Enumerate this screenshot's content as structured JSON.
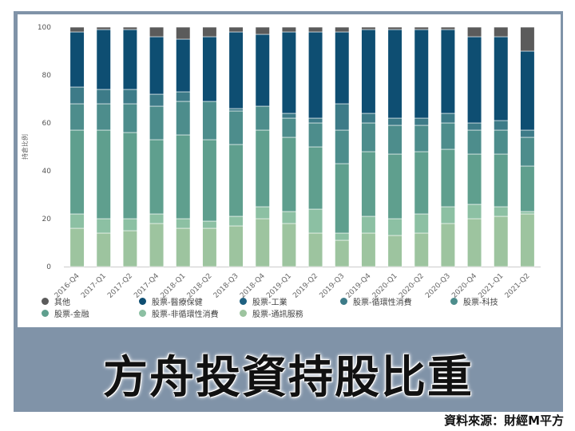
{
  "banner": {
    "title": "方舟投資持股比重"
  },
  "source": {
    "text": "資料來源：財經M平方"
  },
  "chart_data": {
    "type": "bar",
    "stacked": true,
    "ylabel": "持倉比例",
    "ylim": [
      0,
      100
    ],
    "yticks": [
      0,
      20,
      40,
      60,
      80,
      100
    ],
    "grid": false,
    "legend_position": "bottom",
    "categories": [
      "2016-Q4",
      "2017-Q1",
      "2017-Q2",
      "2017-Q4",
      "2018-Q1",
      "2018-Q2",
      "2018-Q3",
      "2018-Q4",
      "2019-Q1",
      "2019-Q2",
      "2019-Q3",
      "2019-Q4",
      "2020-Q1",
      "2020-Q2",
      "2020-Q3",
      "2020-Q4",
      "2021-Q1",
      "2021-Q2"
    ],
    "series": [
      {
        "name": "股票-通訊服務",
        "color": "#9dc49f",
        "values": [
          16,
          14,
          15,
          18,
          16,
          16,
          17,
          20,
          18,
          14,
          11,
          14,
          13,
          14,
          18,
          20,
          21,
          22
        ]
      },
      {
        "name": "股票-非循環性消費",
        "color": "#8cc0a3",
        "values": [
          6,
          6,
          5,
          4,
          4,
          3,
          4,
          5,
          5,
          10,
          3,
          7,
          7,
          8,
          7,
          6,
          4,
          1
        ]
      },
      {
        "name": "股票-金融",
        "color": "#5f9f8e",
        "values": [
          35,
          37,
          36,
          31,
          35,
          34,
          30,
          32,
          31,
          26,
          29,
          27,
          27,
          26,
          24,
          21,
          22,
          19
        ]
      },
      {
        "name": "股票-科技",
        "color": "#4d8d8c",
        "values": [
          11,
          11,
          12,
          14,
          14,
          16,
          14,
          10,
          8,
          10,
          14,
          12,
          12,
          11,
          11,
          10,
          10,
          12
        ]
      },
      {
        "name": "股票-循環性消費",
        "color": "#3d7b88",
        "values": [
          7,
          6,
          6,
          5,
          4,
          0,
          1,
          0,
          2,
          2,
          11,
          4,
          3,
          3,
          4,
          3,
          4,
          3
        ]
      },
      {
        "name": "股票-工業",
        "color": "#1f6181",
        "values": [
          0,
          0,
          0,
          0,
          0,
          0,
          0,
          0,
          0,
          0,
          0,
          0,
          0,
          0,
          0,
          0,
          0,
          0
        ]
      },
      {
        "name": "股票-醫療保健",
        "color": "#0e4e72",
        "values": [
          23,
          25,
          25,
          24,
          22,
          27,
          32,
          30,
          34,
          36,
          30,
          35,
          37,
          37,
          35,
          36,
          35,
          33
        ]
      },
      {
        "name": "其他",
        "color": "#5b5b5b",
        "values": [
          2,
          1,
          1,
          4,
          5,
          4,
          2,
          3,
          2,
          2,
          2,
          1,
          1,
          1,
          1,
          4,
          4,
          10
        ]
      }
    ],
    "legend": [
      {
        "name": "其他",
        "color": "#5b5b5b"
      },
      {
        "name": "股票-醫療保健",
        "color": "#0e4e72"
      },
      {
        "name": "股票-工業",
        "color": "#1f6181"
      },
      {
        "name": "股票-循環性消費",
        "color": "#3d7b88"
      },
      {
        "name": "股票-科技",
        "color": "#4d8d8c"
      },
      {
        "name": "股票-金融",
        "color": "#5f9f8e"
      },
      {
        "name": "股票-非循環性消費",
        "color": "#8cc0a3"
      },
      {
        "name": "股票-通訊服務",
        "color": "#9dc49f"
      }
    ]
  }
}
